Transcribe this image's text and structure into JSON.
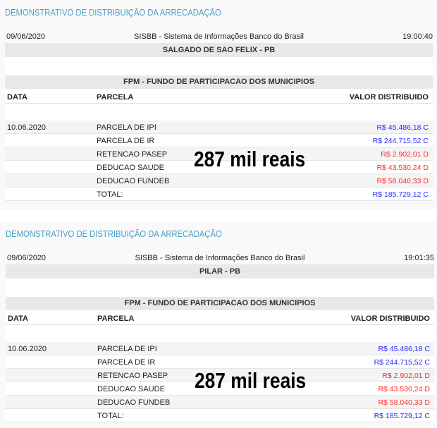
{
  "reports": [
    {
      "title": "DEMONSTRATIVO DE DISTRIBUIÇÃO DA ARRECADAÇÃO",
      "date": "09/06/2020",
      "system": "SISBB - Sistema de Informações Banco do Brasil",
      "time": "19:00:40",
      "municipality": "SALGADO DE SAO FELIX - PB",
      "fund": "FPM - FUNDO DE PARTICIPACAO DOS MUNICIPIOS",
      "columns": [
        "DATA",
        "PARCELA",
        "VALOR DISTRIBUIDO"
      ],
      "rows": [
        {
          "data": "10.06.2020",
          "parcela": "PARCELA DE IPI",
          "valor": "R$ 45.486,18 C",
          "color": "#2a2aff"
        },
        {
          "data": "",
          "parcela": "PARCELA DE IR",
          "valor": "R$ 244.715,52 C",
          "color": "#2a2aff"
        },
        {
          "data": "",
          "parcela": "RETENCAO PASEP",
          "valor": "R$ 2.902,01 D",
          "color": "#ff2a2a"
        },
        {
          "data": "",
          "parcela": "DEDUCAO SAUDE",
          "valor": "R$ 43.530,24 D",
          "color": "#ff2a2a"
        },
        {
          "data": "",
          "parcela": "DEDUCAO FUNDEB",
          "valor": "R$ 58.040,33 D",
          "color": "#ff2a2a"
        },
        {
          "data": "",
          "parcela": "TOTAL:",
          "valor": "R$ 185.729,12 C",
          "color": "#2a2aff"
        }
      ],
      "overlay": "287 mil reais"
    },
    {
      "title": "DEMONSTRATIVO DE DISTRIBUIÇÃO DA ARRECADAÇÃO",
      "date": "09/06/2020",
      "system": "SISBB - Sistema de Informações Banco do Brasil",
      "time": "19:01:35",
      "municipality": "PILAR - PB",
      "fund": "FPM - FUNDO DE PARTICIPACAO DOS MUNICIPIOS",
      "columns": [
        "DATA",
        "PARCELA",
        "VALOR DISTRIBUIDO"
      ],
      "rows": [
        {
          "data": "10.06.2020",
          "parcela": "PARCELA DE IPI",
          "valor": "R$ 45.486,18 C",
          "color": "#2a2aff"
        },
        {
          "data": "",
          "parcela": "PARCELA DE IR",
          "valor": "R$ 244.715,52 C",
          "color": "#2a2aff"
        },
        {
          "data": "",
          "parcela": "RETENCAO PASEP",
          "valor": "R$ 2.902,01 D",
          "color": "#ff2a2a"
        },
        {
          "data": "",
          "parcela": "DEDUCAO SAUDE",
          "valor": "R$ 43.530,24 D",
          "color": "#ff2a2a"
        },
        {
          "data": "",
          "parcela": "DEDUCAO FUNDEB",
          "valor": "R$ 58.040,33 D",
          "color": "#ff2a2a"
        },
        {
          "data": "",
          "parcela": "TOTAL:",
          "valor": "R$ 185.729,12 C",
          "color": "#2a2aff"
        }
      ],
      "overlay": "287 mil reais"
    }
  ]
}
